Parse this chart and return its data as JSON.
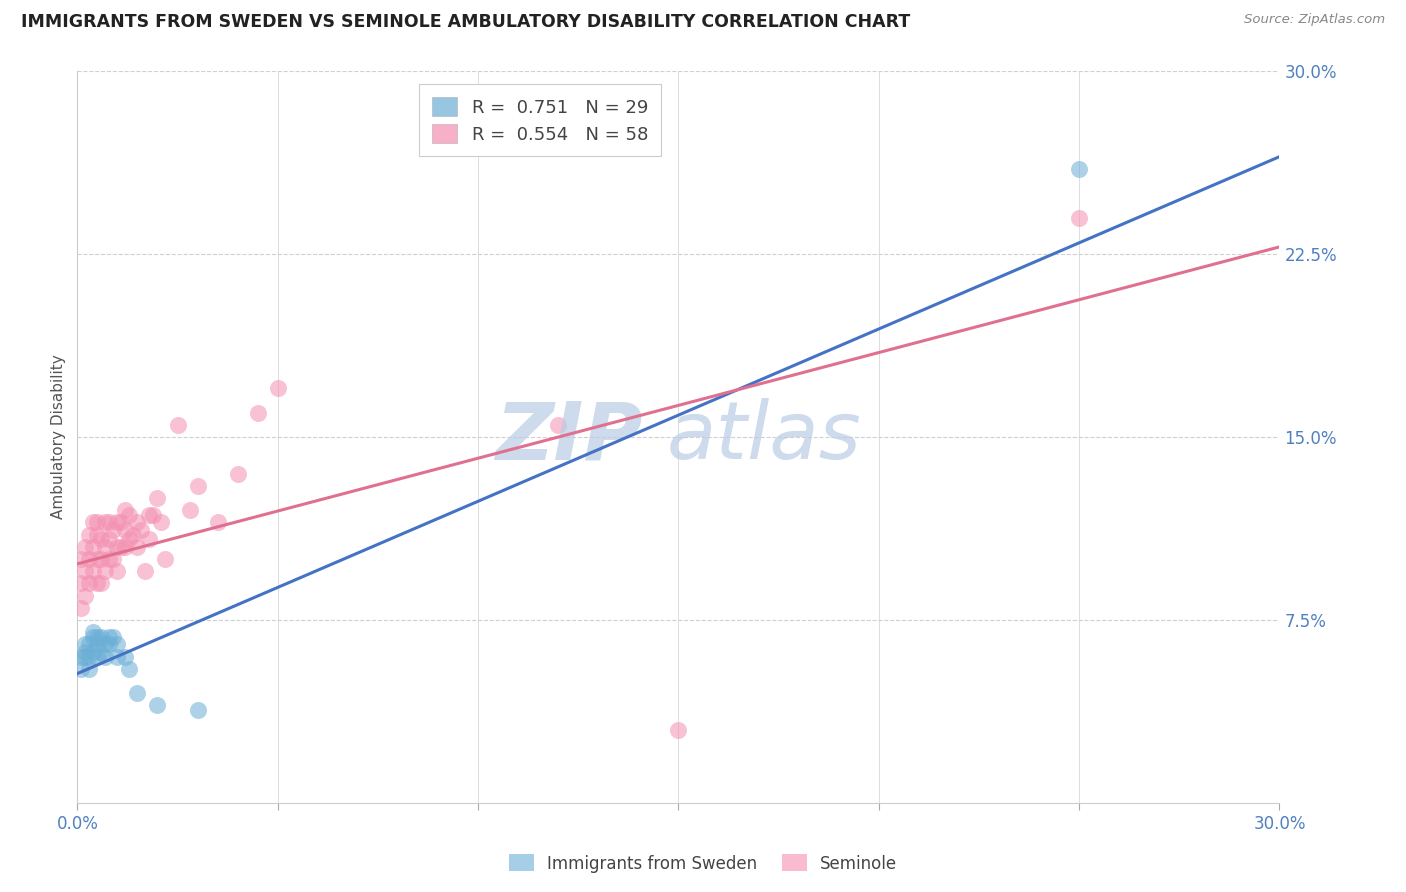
{
  "title": "IMMIGRANTS FROM SWEDEN VS SEMINOLE AMBULATORY DISABILITY CORRELATION CHART",
  "source": "Source: ZipAtlas.com",
  "ylabel": "Ambulatory Disability",
  "xmin": 0.0,
  "xmax": 0.3,
  "ymin": 0.0,
  "ymax": 0.3,
  "yticks": [
    0.075,
    0.15,
    0.225,
    0.3
  ],
  "ytick_labels": [
    "7.5%",
    "15.0%",
    "22.5%",
    "30.0%"
  ],
  "watermark_zip": "ZIP",
  "watermark_atlas": "atlas",
  "series1_label": "Immigrants from Sweden",
  "series1_R": "0.751",
  "series1_N": "29",
  "series1_color": "#6baed6",
  "series1_line_color": "#4472c4",
  "series2_label": "Seminole",
  "series2_R": "0.554",
  "series2_N": "58",
  "series2_color": "#f48fb1",
  "series2_line_color": "#e07090",
  "series1_x": [
    0.001,
    0.001,
    0.002,
    0.002,
    0.002,
    0.003,
    0.003,
    0.003,
    0.004,
    0.004,
    0.004,
    0.005,
    0.005,
    0.005,
    0.006,
    0.006,
    0.007,
    0.007,
    0.008,
    0.008,
    0.009,
    0.01,
    0.01,
    0.012,
    0.013,
    0.015,
    0.02,
    0.03,
    0.25
  ],
  "series1_y": [
    0.055,
    0.06,
    0.06,
    0.062,
    0.065,
    0.055,
    0.06,
    0.065,
    0.062,
    0.068,
    0.07,
    0.06,
    0.065,
    0.068,
    0.062,
    0.068,
    0.06,
    0.065,
    0.065,
    0.068,
    0.068,
    0.06,
    0.065,
    0.06,
    0.055,
    0.045,
    0.04,
    0.038,
    0.26
  ],
  "series2_x": [
    0.001,
    0.001,
    0.001,
    0.002,
    0.002,
    0.002,
    0.003,
    0.003,
    0.003,
    0.004,
    0.004,
    0.004,
    0.005,
    0.005,
    0.005,
    0.005,
    0.006,
    0.006,
    0.006,
    0.007,
    0.007,
    0.007,
    0.008,
    0.008,
    0.008,
    0.009,
    0.009,
    0.01,
    0.01,
    0.01,
    0.011,
    0.011,
    0.012,
    0.012,
    0.012,
    0.013,
    0.013,
    0.014,
    0.015,
    0.015,
    0.016,
    0.017,
    0.018,
    0.018,
    0.019,
    0.02,
    0.021,
    0.022,
    0.025,
    0.028,
    0.03,
    0.035,
    0.04,
    0.045,
    0.05,
    0.12,
    0.15,
    0.25
  ],
  "series2_y": [
    0.08,
    0.09,
    0.1,
    0.085,
    0.095,
    0.105,
    0.09,
    0.1,
    0.11,
    0.095,
    0.105,
    0.115,
    0.09,
    0.1,
    0.11,
    0.115,
    0.09,
    0.1,
    0.108,
    0.095,
    0.105,
    0.115,
    0.1,
    0.108,
    0.115,
    0.1,
    0.112,
    0.095,
    0.105,
    0.115,
    0.105,
    0.115,
    0.105,
    0.112,
    0.12,
    0.108,
    0.118,
    0.11,
    0.105,
    0.115,
    0.112,
    0.095,
    0.108,
    0.118,
    0.118,
    0.125,
    0.115,
    0.1,
    0.155,
    0.12,
    0.13,
    0.115,
    0.135,
    0.16,
    0.17,
    0.155,
    0.03,
    0.24
  ],
  "line1_x0": 0.0,
  "line1_y0": 0.053,
  "line1_x1": 0.3,
  "line1_y1": 0.265,
  "line2_x0": 0.0,
  "line2_y0": 0.098,
  "line2_x1": 0.3,
  "line2_y1": 0.228
}
